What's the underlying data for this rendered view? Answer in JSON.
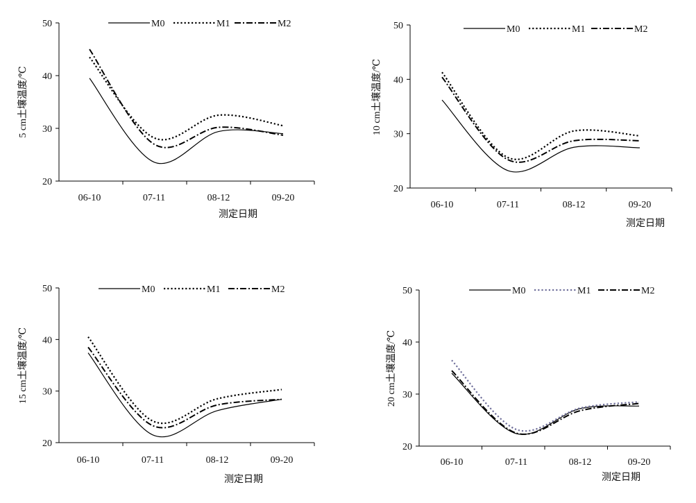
{
  "chart_data": [
    {
      "type": "line",
      "categories": [
        "06-10",
        "07-11",
        "08-12",
        "09-20"
      ],
      "ylabel": "5 cm土壤温度/℃",
      "xlabel": "测定日期",
      "ylim": [
        20,
        50
      ],
      "yticks": [
        20,
        30,
        40,
        50
      ],
      "legend": "top",
      "series": [
        {
          "name": "M0",
          "values": [
            39.5,
            23.6,
            29.4,
            29.0
          ],
          "style": "solid",
          "color": "#000000"
        },
        {
          "name": "M1",
          "values": [
            43.5,
            28.2,
            32.5,
            30.5
          ],
          "style": "dotted",
          "color": "#000000"
        },
        {
          "name": "M2",
          "values": [
            45.0,
            27.0,
            30.2,
            28.7
          ],
          "style": "dashdot",
          "color": "#000000"
        }
      ]
    },
    {
      "type": "line",
      "categories": [
        "06-10",
        "07-11",
        "08-12",
        "09-20"
      ],
      "ylabel": "10 cm土壤温度/℃",
      "xlabel": "测定日期",
      "ylim": [
        20,
        50
      ],
      "yticks": [
        20,
        30,
        40,
        50
      ],
      "legend": "top",
      "series": [
        {
          "name": "M0",
          "values": [
            36.2,
            23.2,
            27.5,
            27.4
          ],
          "style": "solid",
          "color": "#000000"
        },
        {
          "name": "M1",
          "values": [
            41.3,
            25.6,
            30.5,
            29.6
          ],
          "style": "dotted",
          "color": "#000000"
        },
        {
          "name": "M2",
          "values": [
            40.4,
            25.2,
            28.7,
            28.7
          ],
          "style": "dashdot",
          "color": "#000000"
        }
      ]
    },
    {
      "type": "line",
      "categories": [
        "06-10",
        "07-11",
        "08-12",
        "09-20"
      ],
      "ylabel": "15 cm土壤温度/℃",
      "xlabel": "测定日期",
      "ylim": [
        20,
        50
      ],
      "yticks": [
        20,
        30,
        40,
        50
      ],
      "legend": "top",
      "series": [
        {
          "name": "M0",
          "values": [
            37.4,
            21.5,
            26.2,
            28.4
          ],
          "style": "solid",
          "color": "#000000"
        },
        {
          "name": "M1",
          "values": [
            40.5,
            24.2,
            28.5,
            30.3
          ],
          "style": "dotted",
          "color": "#000000"
        },
        {
          "name": "M2",
          "values": [
            38.5,
            23.3,
            27.3,
            28.4
          ],
          "style": "dashdot",
          "color": "#000000"
        }
      ]
    },
    {
      "type": "line",
      "categories": [
        "06-10",
        "07-11",
        "08-12",
        "09-20"
      ],
      "ylabel": "20 cm土壤温度/℃",
      "xlabel": "测定日期",
      "ylim": [
        20,
        50
      ],
      "yticks": [
        20,
        30,
        40,
        50
      ],
      "legend": "top",
      "series": [
        {
          "name": "M0",
          "values": [
            34.0,
            22.4,
            27.2,
            27.7
          ],
          "style": "solid",
          "color": "#000000"
        },
        {
          "name": "M1",
          "values": [
            36.5,
            23.2,
            27.3,
            28.5
          ],
          "style": "dotted",
          "color": "#6e6e9a"
        },
        {
          "name": "M2",
          "values": [
            34.5,
            22.5,
            26.8,
            28.2
          ],
          "style": "dashdot",
          "color": "#000000"
        }
      ]
    }
  ]
}
